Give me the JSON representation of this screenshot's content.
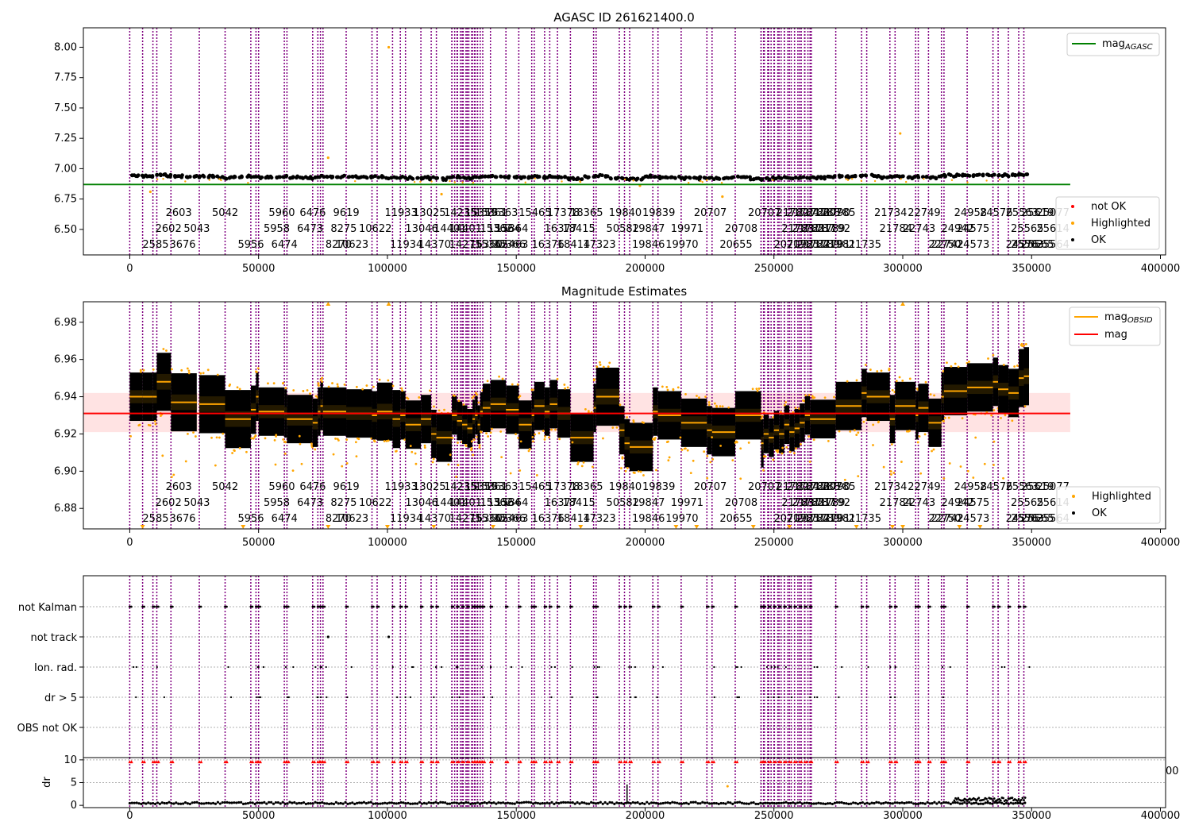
{
  "figure": {
    "colors": {
      "ok": "#000000",
      "highlighted": "#ffa500",
      "not_ok": "#ff0000",
      "obsid_line": "#800080",
      "agasc_line": "#008000",
      "mag_line": "#ff0000",
      "mag_obsid": "#ffa500",
      "band": "#ffcccc"
    }
  },
  "chart_data": [
    {
      "id": "top",
      "type": "scatter",
      "title": "AGASC ID 261621400.0",
      "xlim": [
        -18000,
        402000
      ],
      "ylim": [
        6.29,
        8.16
      ],
      "xticks": [
        0,
        50000,
        100000,
        150000,
        200000,
        250000,
        300000,
        350000,
        400000
      ],
      "xtick_labels": [
        "0",
        "50000",
        "100000",
        "150000",
        "200000",
        "250000",
        "300000",
        "350000",
        "400000"
      ],
      "yticks": [
        6.5,
        6.75,
        7.0,
        7.25,
        7.5,
        7.75,
        8.0
      ],
      "ytick_labels": [
        "6.50",
        "6.75",
        "7.00",
        "7.25",
        "7.50",
        "7.75",
        "8.00"
      ],
      "mag_agasc": 6.87,
      "mag_agasc_xrange": [
        -18000,
        365000
      ],
      "outliers": [
        [
          8000,
          6.81
        ],
        [
          100500,
          8.0
        ],
        [
          77000,
          7.09
        ],
        [
          299000,
          7.29
        ],
        [
          121000,
          6.79
        ],
        [
          198000,
          6.86
        ],
        [
          230000,
          6.77
        ]
      ],
      "legend_upper": [
        {
          "label": "mag",
          "sub": "AGASC"
        }
      ],
      "legend_lower": [
        "not OK",
        "Highlighted",
        "OK"
      ]
    },
    {
      "id": "middle",
      "type": "scatter",
      "title": "Magnitude Estimates",
      "xlim": [
        -18000,
        402000
      ],
      "ylim": [
        6.869,
        6.991
      ],
      "xticks": [
        0,
        50000,
        100000,
        150000,
        200000,
        250000,
        300000,
        350000,
        400000
      ],
      "xtick_labels": [
        "0",
        "50000",
        "100000",
        "150000",
        "200000",
        "250000",
        "300000",
        "350000",
        "400000"
      ],
      "yticks": [
        6.88,
        6.9,
        6.92,
        6.94,
        6.96,
        6.98
      ],
      "ytick_labels": [
        "6.88",
        "6.90",
        "6.92",
        "6.94",
        "6.96",
        "6.98"
      ],
      "mag": 6.931,
      "mag_band": [
        6.921,
        6.942
      ],
      "mag_xrange": [
        -18000,
        365000
      ],
      "legend_upper": [
        {
          "label": "mag",
          "sub": "OBSID"
        },
        {
          "label": "mag",
          "sub": ""
        }
      ],
      "legend_lower": [
        "Highlighted",
        "OK"
      ]
    },
    {
      "id": "flags",
      "type": "scatter",
      "xlim": [
        -18000,
        402000
      ],
      "categories": [
        "not Kalman",
        "not track",
        "Ion. rad.",
        "dr > 5",
        "OBS not OK"
      ]
    },
    {
      "id": "dr",
      "type": "scatter",
      "ylabel": "dr",
      "xlim": [
        -18000,
        402000
      ],
      "ylim": [
        -0.5,
        10.5
      ],
      "yticks": [
        0,
        5,
        10
      ],
      "ytick_labels": [
        "0",
        "5",
        "10"
      ],
      "xticks": [
        0,
        50000,
        100000,
        150000,
        200000,
        250000,
        300000,
        350000,
        400000
      ],
      "xtick_labels": [
        "0",
        "50000",
        "100000",
        "150000",
        "200000",
        "250000",
        "300000",
        "350000",
        "400000"
      ],
      "stray_tick": "00"
    }
  ],
  "observations": [
    [
      2585,
      0,
      6.94,
      0.01
    ],
    [
      2602,
      5000,
      6.94,
      0.01
    ],
    [
      2603,
      9000,
      6.94,
      0.01
    ],
    [
      3676,
      10500,
      6.948,
      0.012
    ],
    [
      5042,
      16000,
      6.937,
      0.012
    ],
    [
      5043,
      27000,
      6.936,
      0.012
    ],
    [
      5956,
      37000,
      6.928,
      0.012
    ],
    [
      5958,
      47000,
      6.933,
      0.01
    ],
    [
      5960,
      49000,
      6.94,
      0.01
    ],
    [
      6474,
      50000,
      6.932,
      0.01
    ],
    [
      6473,
      60000,
      6.931,
      0.01
    ],
    [
      6476,
      61000,
      6.928,
      0.01
    ],
    [
      8270,
      71000,
      6.926,
      0.01
    ],
    [
      8275,
      73000,
      6.932,
      0.01
    ],
    [
      9619,
      74000,
      6.935,
      0.01
    ],
    [
      10623,
      75000,
      6.932,
      0.01
    ],
    [
      10622,
      84000,
      6.931,
      0.01
    ],
    [
      11933,
      94000,
      6.93,
      0.01
    ],
    [
      11934,
      96000,
      6.932,
      0.012
    ],
    [
      13046,
      102000,
      6.928,
      0.012
    ],
    [
      13025,
      105000,
      6.93,
      0.01
    ],
    [
      14370,
      107000,
      6.925,
      0.01
    ],
    [
      14401,
      113000,
      6.928,
      0.01
    ],
    [
      14235,
      117000,
      6.92,
      0.01
    ],
    [
      14275,
      119000,
      6.918,
      0.01
    ],
    [
      15359,
      125000,
      6.93,
      0.008
    ],
    [
      15360,
      127000,
      6.927,
      0.008
    ],
    [
      15361,
      129000,
      6.925,
      0.008
    ],
    [
      15362,
      131000,
      6.923,
      0.008
    ],
    [
      15363,
      133000,
      6.928,
      0.008
    ],
    [
      15364,
      134000,
      6.93,
      0.008
    ],
    [
      15365,
      135000,
      6.925,
      0.008
    ],
    [
      15366,
      136000,
      6.932,
      0.008
    ],
    [
      15463,
      137000,
      6.934,
      0.01
    ],
    [
      15464,
      140000,
      6.936,
      0.01
    ],
    [
      15465,
      146000,
      6.933,
      0.01
    ],
    [
      16376,
      151000,
      6.925,
      0.01
    ],
    [
      16377,
      156000,
      6.93,
      0.01
    ],
    [
      17378,
      157000,
      6.935,
      0.01
    ],
    [
      18414,
      161000,
      6.932,
      0.01
    ],
    [
      18415,
      163000,
      6.936,
      0.01
    ],
    [
      18365,
      166000,
      6.931,
      0.01
    ],
    [
      17323,
      171000,
      6.918,
      0.01
    ],
    [
      50582,
      180000,
      6.934,
      0.01
    ],
    [
      19840,
      181000,
      6.94,
      0.012
    ],
    [
      19846,
      190000,
      6.922,
      0.01
    ],
    [
      19847,
      192000,
      6.915,
      0.01
    ],
    [
      19839,
      194000,
      6.913,
      0.01
    ],
    [
      19970,
      203000,
      6.932,
      0.01
    ],
    [
      19971,
      205000,
      6.93,
      0.01
    ],
    [
      20707,
      214000,
      6.926,
      0.01
    ],
    [
      20655,
      224000,
      6.922,
      0.01
    ],
    [
      20708,
      226000,
      6.921,
      0.01
    ],
    [
      20708,
      235000,
      6.93,
      0.01
    ],
    [
      20709,
      245000,
      6.915,
      0.01
    ],
    [
      21782,
      246000,
      6.92,
      0.008
    ],
    [
      21783,
      248000,
      6.918,
      0.008
    ],
    [
      21784,
      250000,
      6.922,
      0.008
    ],
    [
      21785,
      252000,
      6.92,
      0.008
    ],
    [
      21786,
      254000,
      6.925,
      0.008
    ],
    [
      21787,
      256000,
      6.921,
      0.008
    ],
    [
      21788,
      258000,
      6.923,
      0.008
    ],
    [
      21789,
      260000,
      6.926,
      0.008
    ],
    [
      21790,
      262000,
      6.93,
      0.008
    ],
    [
      21791,
      264000,
      6.928,
      0.008
    ],
    [
      21735,
      274000,
      6.935,
      0.01
    ],
    [
      21734,
      284000,
      6.942,
      0.01
    ],
    [
      21784,
      286000,
      6.94,
      0.01
    ],
    [
      22743,
      295000,
      6.928,
      0.01
    ],
    [
      22749,
      297000,
      6.935,
      0.01
    ],
    [
      22750,
      305000,
      6.93,
      0.01
    ],
    [
      22742,
      306000,
      6.934,
      0.01
    ],
    [
      24942,
      310000,
      6.926,
      0.01
    ],
    [
      24958,
      315000,
      6.94,
      0.01
    ],
    [
      24573,
      316000,
      6.943,
      0.01
    ],
    [
      24575,
      325000,
      6.945,
      0.01
    ],
    [
      24576,
      335000,
      6.948,
      0.01
    ],
    [
      25563,
      337000,
      6.944,
      0.01
    ],
    [
      25564,
      341000,
      6.942,
      0.01
    ],
    [
      25565,
      345000,
      6.95,
      0.012
    ],
    [
      25614,
      347000,
      6.951,
      0.012
    ]
  ],
  "obsid_rows": {
    "row1": [
      [
        2603,
        9000
      ],
      [
        5042,
        27000
      ],
      [
        5960,
        49000
      ],
      [
        6476,
        61000
      ],
      [
        9619,
        74000
      ],
      [
        11933,
        94000
      ],
      [
        13025,
        105000
      ],
      [
        14235,
        117000
      ],
      [
        15359,
        125000
      ],
      [
        15361,
        129000
      ],
      [
        15363,
        133000
      ],
      [
        15465,
        146000
      ],
      [
        17378,
        157000
      ],
      [
        18365,
        166000
      ],
      [
        19840,
        181000
      ],
      [
        19839,
        194000
      ],
      [
        20707,
        214000
      ],
      [
        20707,
        235000
      ],
      [
        21782,
        246000
      ],
      [
        21784,
        250000
      ],
      [
        21786,
        254000
      ],
      [
        21788,
        258000
      ],
      [
        21790,
        262000
      ],
      [
        20785,
        264000
      ],
      [
        21734,
        284000
      ],
      [
        22749,
        297000
      ],
      [
        24958,
        315000
      ],
      [
        24576,
        325000
      ],
      [
        25563,
        335000
      ],
      [
        25619,
        341000
      ],
      [
        25077,
        347000
      ]
    ],
    "row2": [
      [
        2602,
        5000
      ],
      [
        5043,
        16000
      ],
      [
        5958,
        47000
      ],
      [
        6473,
        60000
      ],
      [
        8275,
        73000
      ],
      [
        10622,
        84000
      ],
      [
        13046,
        102000
      ],
      [
        14401,
        113000
      ],
      [
        14401,
        119000
      ],
      [
        15362,
        131000
      ],
      [
        15364,
        134000
      ],
      [
        15364,
        137000
      ],
      [
        16377,
        156000
      ],
      [
        18415,
        163000
      ],
      [
        50582,
        180000
      ],
      [
        19847,
        190000
      ],
      [
        19971,
        205000
      ],
      [
        20708,
        226000
      ],
      [
        21783,
        248000
      ],
      [
        21785,
        252000
      ],
      [
        21787,
        256000
      ],
      [
        21789,
        260000
      ],
      [
        21192,
        262000
      ],
      [
        21784,
        286000
      ],
      [
        22743,
        295000
      ],
      [
        24942,
        310000
      ],
      [
        24575,
        316000
      ],
      [
        25565,
        337000
      ],
      [
        25614,
        347000
      ]
    ],
    "row3": [
      [
        2585,
        0
      ],
      [
        3676,
        10500
      ],
      [
        5956,
        37000
      ],
      [
        6474,
        50000
      ],
      [
        8270,
        71000
      ],
      [
        10623,
        75000
      ],
      [
        11934,
        96000
      ],
      [
        14370,
        107000
      ],
      [
        14275,
        119000
      ],
      [
        15360,
        127000
      ],
      [
        15362,
        129000
      ],
      [
        15366,
        136000
      ],
      [
        15463,
        137000
      ],
      [
        16376,
        151000
      ],
      [
        18414,
        161000
      ],
      [
        17323,
        171000
      ],
      [
        19846,
        190000
      ],
      [
        19970,
        203000
      ],
      [
        20655,
        224000
      ],
      [
        20709,
        245000
      ],
      [
        21785,
        250000
      ],
      [
        21787,
        254000
      ],
      [
        21789,
        258000
      ],
      [
        21791,
        262000
      ],
      [
        21981,
        264000
      ],
      [
        21735,
        274000
      ],
      [
        22750,
        305000
      ],
      [
        22742,
        306000
      ],
      [
        24573,
        316000
      ],
      [
        24576,
        335000
      ],
      [
        25563,
        337000
      ],
      [
        25565,
        341000
      ],
      [
        25564,
        347000
      ]
    ]
  }
}
